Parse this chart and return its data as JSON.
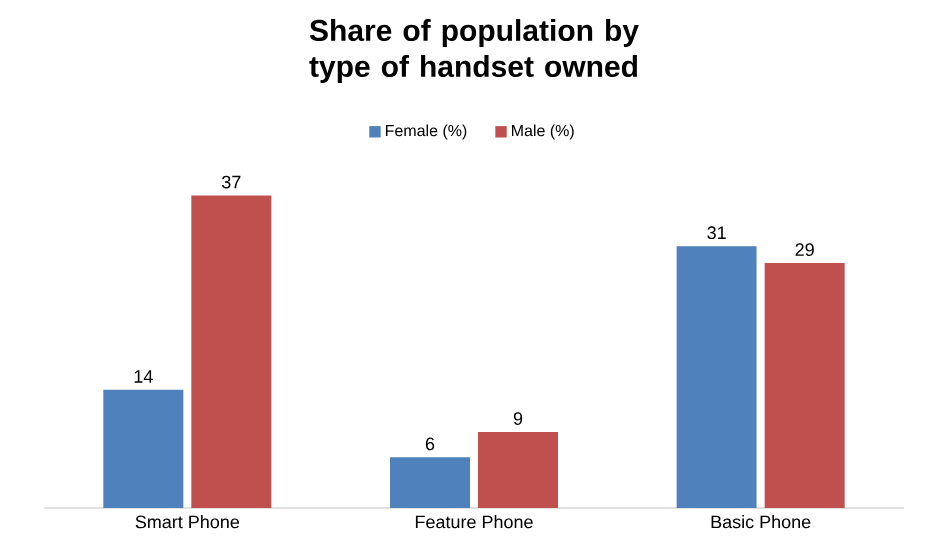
{
  "chart_data": {
    "type": "bar",
    "title": "Share of population by type of handset owned",
    "categories": [
      "Smart Phone",
      "Feature Phone",
      "Basic Phone"
    ],
    "series": [
      {
        "name": "Female (%)",
        "color": "#4f81bd",
        "values": [
          14,
          6,
          31
        ]
      },
      {
        "name": "Male (%)",
        "color": "#c0504d",
        "values": [
          37,
          9,
          29
        ]
      }
    ],
    "data_labels": true,
    "legend": "top"
  }
}
